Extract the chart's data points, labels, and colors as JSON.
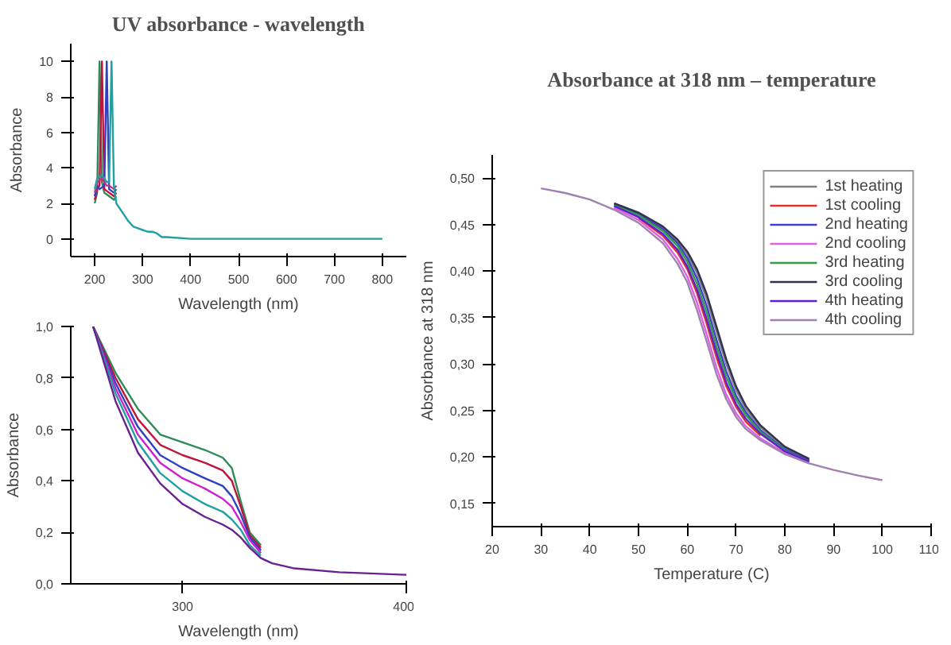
{
  "chart_data": [
    {
      "type": "line",
      "title": "UV absorbance - wavelength",
      "xlabel": "Wavelength (nm)",
      "ylabel": "Absorbance",
      "xlim": [
        150,
        850
      ],
      "ylim": [
        -1,
        11
      ],
      "xticks": [
        200,
        300,
        400,
        500,
        600,
        700,
        800
      ],
      "yticks": [
        0,
        2,
        4,
        6,
        8,
        10
      ],
      "grid": false,
      "legend": false,
      "x": [
        200,
        205,
        210,
        215,
        220,
        225,
        230,
        235,
        240,
        245,
        250,
        260,
        270,
        280,
        290,
        300,
        310,
        320,
        330,
        340,
        350,
        400,
        500,
        600,
        700,
        800
      ],
      "series": [
        {
          "color": "#2e8b57",
          "values": [
            2.0,
            2.6,
            10,
            3.2,
            2.6,
            2.5,
            2.4,
            2.3,
            2.2,
            2.4,
            null,
            null,
            null,
            null,
            null,
            null,
            null,
            null,
            null,
            null,
            null,
            null,
            null,
            null,
            null,
            null
          ]
        },
        {
          "color": "#c0143c",
          "values": [
            2.2,
            2.8,
            3.0,
            10,
            2.8,
            2.7,
            2.6,
            2.5,
            2.4,
            2.6,
            null,
            null,
            null,
            null,
            null,
            null,
            null,
            null,
            null,
            null,
            null,
            null,
            null,
            null,
            null,
            null
          ]
        },
        {
          "color": "#3040c0",
          "values": [
            2.4,
            3.0,
            2.8,
            2.9,
            3.0,
            10,
            2.8,
            2.7,
            2.6,
            2.8,
            null,
            null,
            null,
            null,
            null,
            null,
            null,
            null,
            null,
            null,
            null,
            null,
            null,
            null,
            null,
            null
          ]
        },
        {
          "color": "#d0307f",
          "values": [
            2.6,
            3.2,
            3.3,
            3.4,
            3.2,
            3.0,
            3.0,
            2.9,
            2.8,
            3.0,
            null,
            null,
            null,
            null,
            null,
            null,
            null,
            null,
            null,
            null,
            null,
            null,
            null,
            null,
            null,
            null
          ]
        },
        {
          "color": "#20a0a0",
          "values": [
            2.8,
            3.4,
            3.5,
            3.6,
            3.4,
            3.2,
            3.2,
            10,
            3.0,
            2.0,
            1.8,
            1.4,
            1.0,
            0.7,
            0.6,
            0.5,
            0.4,
            0.4,
            0.3,
            0.1,
            0.1,
            0.0,
            0.0,
            0.0,
            0.0,
            0.0
          ]
        }
      ]
    },
    {
      "type": "line",
      "xlabel": "Wavelength (nm)",
      "ylabel": "Absorbance",
      "xlim": [
        250,
        400
      ],
      "ylim": [
        0,
        1
      ],
      "xticks": [
        300,
        400
      ],
      "yticks": [
        {
          "value": 0,
          "label": "0,0"
        },
        {
          "value": 0.2,
          "label": "0,2"
        },
        {
          "value": 0.4,
          "label": "0,4"
        },
        {
          "value": 0.6,
          "label": "0,6"
        },
        {
          "value": 0.8,
          "label": "0,8"
        },
        {
          "value": 1,
          "label": "1,0"
        }
      ],
      "grid": false,
      "legend": false,
      "x": [
        260,
        270,
        280,
        290,
        300,
        310,
        318,
        322,
        326,
        330,
        335,
        340,
        350,
        370,
        400
      ],
      "series": [
        {
          "color": "#2e8b57",
          "values": [
            1.0,
            0.82,
            0.68,
            0.58,
            0.55,
            0.52,
            0.49,
            0.45,
            0.32,
            0.2,
            0.15,
            null,
            null,
            null,
            null
          ]
        },
        {
          "color": "#c0143c",
          "values": [
            1.0,
            0.8,
            0.64,
            0.54,
            0.5,
            0.47,
            0.44,
            0.4,
            0.3,
            0.19,
            0.14,
            null,
            null,
            null,
            null
          ]
        },
        {
          "color": "#3040c0",
          "values": [
            1.0,
            0.78,
            0.61,
            0.5,
            0.45,
            0.41,
            0.38,
            0.34,
            0.27,
            0.18,
            0.13,
            null,
            null,
            null,
            null
          ]
        },
        {
          "color": "#d020d0",
          "values": [
            1.0,
            0.76,
            0.58,
            0.47,
            0.41,
            0.37,
            0.33,
            0.3,
            0.24,
            0.17,
            0.12,
            null,
            null,
            null,
            null
          ]
        },
        {
          "color": "#20a0a0",
          "values": [
            1.0,
            0.74,
            0.55,
            0.43,
            0.36,
            0.31,
            0.28,
            0.25,
            0.21,
            0.15,
            0.11,
            null,
            null,
            null,
            null
          ]
        },
        {
          "color": "#6a2090",
          "values": [
            1.0,
            0.71,
            0.51,
            0.39,
            0.31,
            0.26,
            0.23,
            0.21,
            0.18,
            0.14,
            0.1,
            0.08,
            0.06,
            0.045,
            0.035
          ]
        }
      ]
    },
    {
      "type": "line",
      "title": "Absorbance at 318 nm – temperature",
      "xlabel": "Temperature (C)",
      "ylabel": "Absorbance at 318 nm",
      "xlim": [
        20,
        110
      ],
      "ylim": [
        0.125,
        0.525
      ],
      "xticks": [
        20,
        30,
        40,
        50,
        60,
        70,
        80,
        90,
        100,
        110
      ],
      "yticks": [
        {
          "value": 0.15,
          "label": "0,15"
        },
        {
          "value": 0.2,
          "label": "0,20"
        },
        {
          "value": 0.25,
          "label": "0,25"
        },
        {
          "value": 0.3,
          "label": "0,30"
        },
        {
          "value": 0.35,
          "label": "0,35"
        },
        {
          "value": 0.4,
          "label": "0,40"
        },
        {
          "value": 0.45,
          "label": "0,45"
        },
        {
          "value": 0.5,
          "label": "0,50"
        }
      ],
      "grid": false,
      "legend": "top right",
      "x": [
        30,
        35,
        40,
        45,
        50,
        55,
        58,
        60,
        62,
        64,
        66,
        68,
        70,
        72,
        75,
        80,
        85,
        90,
        95,
        100
      ],
      "series": [
        {
          "name": "1st heating",
          "color": "#808080",
          "values": [
            null,
            null,
            null,
            0.472,
            0.462,
            0.447,
            0.432,
            0.418,
            0.398,
            0.37,
            0.335,
            0.3,
            0.272,
            0.252,
            0.232,
            0.21,
            0.197,
            null,
            null,
            null
          ]
        },
        {
          "name": "1st cooling",
          "color": "#e03030",
          "values": [
            null,
            null,
            null,
            null,
            0.457,
            0.438,
            0.42,
            0.402,
            0.376,
            0.343,
            0.307,
            0.276,
            0.254,
            0.238,
            0.223,
            null,
            null,
            null,
            null,
            null
          ]
        },
        {
          "name": "2nd heating",
          "color": "#4040d0",
          "values": [
            null,
            null,
            null,
            0.472,
            0.461,
            0.445,
            0.43,
            0.414,
            0.392,
            0.362,
            0.326,
            0.292,
            0.266,
            0.248,
            0.229,
            0.208,
            0.196,
            null,
            null,
            null
          ]
        },
        {
          "name": "2nd cooling",
          "color": "#e060e0",
          "values": [
            null,
            null,
            null,
            0.468,
            0.455,
            0.434,
            0.413,
            0.394,
            0.366,
            0.332,
            0.296,
            0.267,
            0.247,
            0.233,
            0.22,
            0.204,
            0.193,
            null,
            null,
            null
          ]
        },
        {
          "name": "3rd heating",
          "color": "#30a040",
          "values": [
            null,
            null,
            null,
            0.471,
            0.46,
            0.443,
            0.427,
            0.41,
            0.386,
            0.355,
            0.319,
            0.286,
            0.262,
            0.245,
            0.227,
            0.207,
            0.195,
            null,
            null,
            null
          ]
        },
        {
          "name": "3rd cooling",
          "color": "#303050",
          "values": [
            null,
            null,
            null,
            0.473,
            0.463,
            0.448,
            0.434,
            0.421,
            0.402,
            0.375,
            0.34,
            0.305,
            0.276,
            0.255,
            0.234,
            0.211,
            0.198,
            null,
            null,
            null
          ]
        },
        {
          "name": "4th heating",
          "color": "#6020d0",
          "values": [
            null,
            null,
            null,
            0.47,
            0.458,
            0.44,
            0.423,
            0.405,
            0.38,
            0.348,
            0.312,
            0.28,
            0.257,
            0.241,
            0.225,
            0.206,
            0.195,
            null,
            null,
            null
          ]
        },
        {
          "name": "4th cooling",
          "color": "#a080b0",
          "values": [
            0.489,
            0.484,
            0.477,
            0.466,
            0.452,
            0.43,
            0.408,
            0.388,
            0.358,
            0.324,
            0.289,
            0.262,
            0.243,
            0.23,
            0.218,
            0.203,
            0.193,
            0.186,
            0.18,
            0.175
          ]
        }
      ]
    }
  ]
}
